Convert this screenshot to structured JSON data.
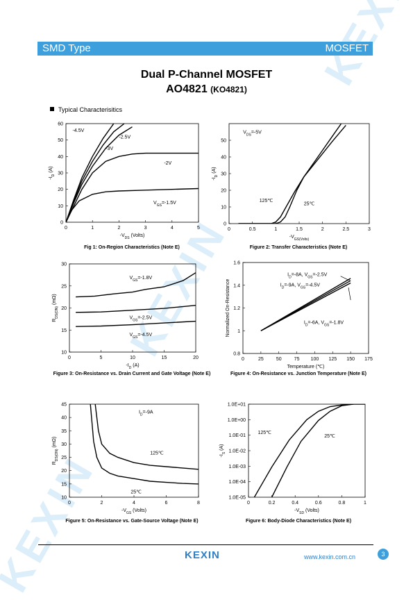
{
  "header": {
    "left": "SMD Type",
    "right": "MOSFET"
  },
  "title": "Dual P-Channel MOSFET",
  "part": "AO4821",
  "alt_part": "(KO4821)",
  "section": "Typical  Characterisitics",
  "figures": {
    "f1": {
      "caption": "Fig 1: On-Region Characteristics (Note E)"
    },
    "f2": {
      "caption": "Figure 2: Transfer Characteristics (Note E)"
    },
    "f3": {
      "caption": "Figure 3: On-Resistance vs. Drain Current and Gate Voltage (Note E)"
    },
    "f4": {
      "caption": "Figure 4: On-Resistance vs. Junction Temperature (Note E)"
    },
    "f5": {
      "caption": "Figure 5: On-Resistance vs. Gate-Source Voltage (Note E)"
    },
    "f6": {
      "caption": "Figure 6: Body-Diode Characteristics (Note E)"
    }
  },
  "chart_data": [
    {
      "id": "f1",
      "type": "line",
      "xlabel": "-V_DS (Volts)",
      "ylabel": "-I_D (A)",
      "xlim": [
        0,
        5
      ],
      "ylim": [
        0,
        60
      ],
      "xticks": [
        0,
        1,
        2,
        3,
        4,
        5
      ],
      "yticks": [
        0,
        10,
        20,
        30,
        40,
        50,
        60
      ],
      "series": [
        {
          "name": "-4.5V",
          "x": [
            0,
            0.3,
            0.6,
            1,
            1.4,
            1.8
          ],
          "y": [
            0,
            14,
            27,
            40,
            51,
            60
          ]
        },
        {
          "name": "-3V",
          "x": [
            0,
            0.3,
            0.6,
            1,
            1.4,
            1.8,
            2.2
          ],
          "y": [
            0,
            13,
            25,
            37,
            47,
            55,
            60
          ]
        },
        {
          "name": "-2.5V",
          "x": [
            0,
            0.3,
            0.6,
            1,
            1.5,
            2,
            2.5
          ],
          "y": [
            0,
            12,
            23,
            34,
            45,
            53,
            58
          ]
        },
        {
          "name": "-2V",
          "x": [
            0,
            0.3,
            0.6,
            1,
            1.5,
            2,
            2.5,
            3,
            4,
            5
          ],
          "y": [
            0,
            10,
            20,
            30,
            37,
            40,
            41.5,
            42,
            42,
            42
          ]
        },
        {
          "name": "V_GS=-1.5V",
          "x": [
            0,
            0.2,
            0.5,
            1,
            1.5,
            2,
            3,
            4,
            5
          ],
          "y": [
            0,
            7,
            13,
            17,
            18.5,
            19,
            19.5,
            20,
            20.5
          ]
        }
      ],
      "labels": [
        {
          "text": "-4.5V",
          "x": 0.25,
          "y": 55
        },
        {
          "text": "-2.5V",
          "x": 2.0,
          "y": 51
        },
        {
          "text": "-3V",
          "x": 1.5,
          "y": 44
        },
        {
          "text": "-2V",
          "x": 3.7,
          "y": 35
        },
        {
          "text": "V_GS=-1.5V",
          "x": 3.3,
          "y": 11
        }
      ]
    },
    {
      "id": "f2",
      "type": "line",
      "xlabel": "-V_GS(Volts)",
      "ylabel": "-I_D (A)",
      "xlim": [
        0,
        3
      ],
      "ylim": [
        0,
        60
      ],
      "xticks": [
        0,
        0.5,
        1,
        1.5,
        2,
        2.5,
        3
      ],
      "yticks": [
        0,
        10,
        20,
        30,
        40,
        50
      ],
      "series": [
        {
          "name": "125℃",
          "x": [
            0.2,
            0.9,
            1,
            1.1,
            1.2,
            1.4,
            1.6,
            1.8,
            2,
            2.2,
            2.4
          ],
          "y": [
            0,
            0,
            1,
            4,
            9,
            19,
            28,
            36,
            44,
            52,
            60
          ]
        },
        {
          "name": "25℃",
          "x": [
            0.2,
            1,
            1.1,
            1.2,
            1.3,
            1.45,
            1.6,
            1.8,
            2,
            2.2,
            2.5
          ],
          "y": [
            0,
            0,
            1,
            4,
            10,
            20,
            28,
            35,
            42,
            49,
            59
          ]
        }
      ],
      "labels": [
        {
          "text": "V_DS=-5V",
          "x": 0.3,
          "y": 54
        },
        {
          "text": "125℃",
          "x": 0.65,
          "y": 13
        },
        {
          "text": "25℃",
          "x": 1.6,
          "y": 11
        }
      ]
    },
    {
      "id": "f3",
      "type": "line",
      "xlabel": "-I_D (A)",
      "ylabel": "R_DS(ON) (mΩ)",
      "xlim": [
        0,
        20
      ],
      "ylim": [
        10,
        30
      ],
      "xticks": [
        0,
        5,
        10,
        15,
        20
      ],
      "yticks": [
        10,
        15,
        20,
        25,
        30
      ],
      "series": [
        {
          "name": "V_GS=-1.8V",
          "x": [
            1,
            4,
            7,
            10,
            12,
            15,
            18,
            20
          ],
          "y": [
            22.5,
            22.7,
            23.2,
            23.6,
            24.2,
            24.8,
            26.2,
            28
          ]
        },
        {
          "name": "V_GS=-2.5V",
          "x": [
            1,
            5,
            10,
            15,
            20
          ],
          "y": [
            19,
            19.1,
            19.5,
            19.9,
            20.6
          ]
        },
        {
          "name": "V_GS=-4.5V",
          "x": [
            1,
            5,
            10,
            15,
            20
          ],
          "y": [
            15.8,
            15.9,
            16.2,
            16.6,
            17
          ]
        }
      ],
      "labels": [
        {
          "text": "V_GS=-1.8V",
          "x": 9.5,
          "y": 26.5
        },
        {
          "text": "V_GS=-2.5V",
          "x": 9.5,
          "y": 17.5
        },
        {
          "text": "V_GS=-4.5V",
          "x": 9.5,
          "y": 13.6
        }
      ]
    },
    {
      "id": "f4",
      "type": "line",
      "xlabel": "Temperature (℃)",
      "ylabel": "Normalized On-Resistance",
      "xlim": [
        0,
        175
      ],
      "ylim": [
        0.8,
        1.6
      ],
      "xticks": [
        0,
        25,
        50,
        75,
        100,
        125,
        150,
        175
      ],
      "yticks": [
        0.8,
        1,
        1.2,
        1.4,
        1.6
      ],
      "series": [
        {
          "name": "I_D=-8A, V_GS=-2.5V",
          "x": [
            25,
            150
          ],
          "y": [
            1,
            1.46
          ]
        },
        {
          "name": "I_D=-9A, V_GS=-4.5V",
          "x": [
            25,
            150
          ],
          "y": [
            1,
            1.44
          ]
        },
        {
          "name": "I_D=-6A, V_GS=-1.8V",
          "x": [
            25,
            150
          ],
          "y": [
            1,
            1.42
          ]
        }
      ],
      "labels": [
        {
          "text": "I_D=-8A, V_GS=-2.5V",
          "x": 62,
          "y": 1.48
        },
        {
          "text": "I_D=-9A, V_GS=-4.5V",
          "x": 52,
          "y": 1.39
        },
        {
          "text": "I_D=-6A, V_GS=-1.8V",
          "x": 85,
          "y": 1.06
        }
      ]
    },
    {
      "id": "f5",
      "type": "line",
      "xlabel": "-V_GS (Volts)",
      "ylabel": "R_DS(ON) (mΩ)",
      "xlim": [
        0,
        8
      ],
      "ylim": [
        10,
        45
      ],
      "xticks": [
        0,
        2,
        4,
        6,
        8
      ],
      "yticks": [
        10,
        15,
        20,
        25,
        30,
        35,
        40,
        45
      ],
      "series": [
        {
          "name": "125℃",
          "x": [
            1.6,
            1.8,
            2,
            2.5,
            3,
            4,
            5,
            6,
            7,
            8
          ],
          "y": [
            45,
            35,
            30,
            26.5,
            25,
            23,
            22,
            21.5,
            21,
            20.5
          ]
        },
        {
          "name": "25℃",
          "x": [
            1.3,
            1.5,
            1.7,
            2,
            2.5,
            3,
            4,
            5,
            6,
            7,
            8
          ],
          "y": [
            45,
            31,
            25,
            21,
            19,
            18,
            17,
            16,
            15.6,
            15.2,
            15
          ]
        }
      ],
      "labels": [
        {
          "text": "I_D=-9A",
          "x": 4.3,
          "y": 41.5
        },
        {
          "text": "125℃",
          "x": 5,
          "y": 26
        },
        {
          "text": "25℃",
          "x": 3.8,
          "y": 11.5
        }
      ]
    },
    {
      "id": "f6",
      "type": "line",
      "xlabel": "-V_SD (Volts)",
      "ylabel": "-I_S (A)",
      "yscale": "log",
      "xlim": [
        0,
        1
      ],
      "ylim": [
        1e-05,
        10
      ],
      "xticks": [
        0,
        0.2,
        0.4,
        0.6,
        0.8,
        1
      ],
      "yticks": [
        "1.0E-05",
        "1.0E-04",
        "1.0E-03",
        "1.0E-02",
        "1.0E-01",
        "1.0E+00",
        "1.0E+01"
      ],
      "series": [
        {
          "name": "125℃",
          "x": [
            0.05,
            0.2,
            0.35,
            0.5,
            0.6,
            0.7,
            0.85,
            1
          ],
          "y": [
            1e-05,
            0.0009,
            0.05,
            1,
            3.5,
            7,
            10,
            10
          ]
        },
        {
          "name": "25℃",
          "x": [
            0.2,
            0.33,
            0.45,
            0.6,
            0.7,
            0.8,
            0.9
          ],
          "y": [
            1e-05,
            0.0009,
            0.04,
            0.9,
            3.5,
            8,
            10
          ]
        }
      ],
      "labels": [
        {
          "text": "125℃",
          "x": 0.08,
          "y": 0.12
        },
        {
          "text": "25℃",
          "x": 0.65,
          "y": 0.07
        }
      ]
    }
  ],
  "footer": {
    "logo": "KEXIN",
    "url": "www.kexin.com.cn",
    "page": "3"
  }
}
